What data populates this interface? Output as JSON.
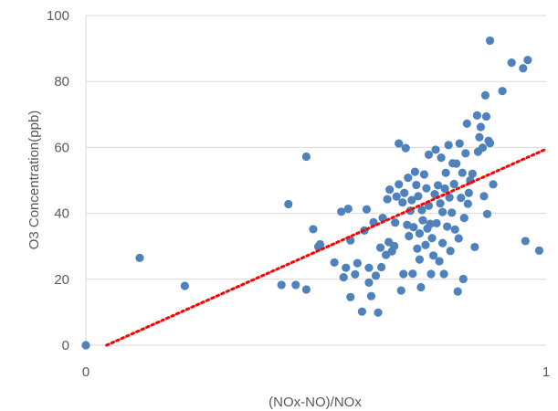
{
  "chart_data": {
    "type": "scatter",
    "xlabel": "(NOx-NO)/NOx",
    "ylabel": "O3 Concentration(ppb)",
    "xlim": [
      0,
      1
    ],
    "ylim": [
      0,
      100
    ],
    "x_ticks": [
      "0",
      "1"
    ],
    "y_ticks": [
      "0",
      "20",
      "40",
      "60",
      "80",
      "100"
    ],
    "grid": "horizontal",
    "legend": "none",
    "marker_color": "#4f81bd",
    "trendline": {
      "style": "dotted",
      "color": "#ff0000",
      "x_start": 0.045,
      "y_start": 0,
      "x_end": 1.0,
      "y_end": 59.5
    },
    "points": [
      [
        0.0,
        0.0
      ],
      [
        0.117,
        26.5
      ],
      [
        0.215,
        18.0
      ],
      [
        0.425,
        18.3
      ],
      [
        0.44,
        42.8
      ],
      [
        0.456,
        18.3
      ],
      [
        0.479,
        16.9
      ],
      [
        0.479,
        57.2
      ],
      [
        0.494,
        35.2
      ],
      [
        0.509,
        30.6
      ],
      [
        0.505,
        29.9
      ],
      [
        0.54,
        25.1
      ],
      [
        0.555,
        40.5
      ],
      [
        0.56,
        20.6
      ],
      [
        0.565,
        23.5
      ],
      [
        0.57,
        41.4
      ],
      [
        0.575,
        14.6
      ],
      [
        0.575,
        31.8
      ],
      [
        0.585,
        21.5
      ],
      [
        0.59,
        24.9
      ],
      [
        0.6,
        10.2
      ],
      [
        0.605,
        34.8
      ],
      [
        0.61,
        41.2
      ],
      [
        0.615,
        19.0
      ],
      [
        0.615,
        23.5
      ],
      [
        0.62,
        14.9
      ],
      [
        0.625,
        37.3
      ],
      [
        0.63,
        21.1
      ],
      [
        0.635,
        9.9
      ],
      [
        0.64,
        29.6
      ],
      [
        0.642,
        23.7
      ],
      [
        0.645,
        38.6
      ],
      [
        0.652,
        27.4
      ],
      [
        0.655,
        44.3
      ],
      [
        0.658,
        31.3
      ],
      [
        0.66,
        47.2
      ],
      [
        0.665,
        28.5
      ],
      [
        0.67,
        30.1
      ],
      [
        0.672,
        37.2
      ],
      [
        0.675,
        45.1
      ],
      [
        0.68,
        61.2
      ],
      [
        0.68,
        48.8
      ],
      [
        0.685,
        16.6
      ],
      [
        0.688,
        43.3
      ],
      [
        0.69,
        21.6
      ],
      [
        0.692,
        46.2
      ],
      [
        0.695,
        59.8
      ],
      [
        0.698,
        36.5
      ],
      [
        0.7,
        50.8
      ],
      [
        0.702,
        33.1
      ],
      [
        0.705,
        40.8
      ],
      [
        0.708,
        44.0
      ],
      [
        0.71,
        21.7
      ],
      [
        0.712,
        35.8
      ],
      [
        0.715,
        52.6
      ],
      [
        0.718,
        48.6
      ],
      [
        0.72,
        29.3
      ],
      [
        0.722,
        45.2
      ],
      [
        0.725,
        26.0
      ],
      [
        0.725,
        33.9
      ],
      [
        0.728,
        17.6
      ],
      [
        0.73,
        41.0
      ],
      [
        0.732,
        37.9
      ],
      [
        0.735,
        51.8
      ],
      [
        0.738,
        30.4
      ],
      [
        0.74,
        47.6
      ],
      [
        0.742,
        35.4
      ],
      [
        0.745,
        42.3
      ],
      [
        0.745,
        57.8
      ],
      [
        0.748,
        36.8
      ],
      [
        0.75,
        21.6
      ],
      [
        0.752,
        32.5
      ],
      [
        0.755,
        27.2
      ],
      [
        0.758,
        45.8
      ],
      [
        0.76,
        59.3
      ],
      [
        0.762,
        37.0
      ],
      [
        0.765,
        48.5
      ],
      [
        0.768,
        25.5
      ],
      [
        0.77,
        43.0
      ],
      [
        0.772,
        56.9
      ],
      [
        0.775,
        31.0
      ],
      [
        0.775,
        40.4
      ],
      [
        0.778,
        21.6
      ],
      [
        0.78,
        47.5
      ],
      [
        0.782,
        52.3
      ],
      [
        0.785,
        36.0
      ],
      [
        0.788,
        60.7
      ],
      [
        0.79,
        44.8
      ],
      [
        0.792,
        28.6
      ],
      [
        0.795,
        40.2
      ],
      [
        0.797,
        55.2
      ],
      [
        0.8,
        48.9
      ],
      [
        0.802,
        35.1
      ],
      [
        0.805,
        55.1
      ],
      [
        0.808,
        16.3
      ],
      [
        0.81,
        32.4
      ],
      [
        0.812,
        61.2
      ],
      [
        0.815,
        44.7
      ],
      [
        0.818,
        52.3
      ],
      [
        0.82,
        20.1
      ],
      [
        0.822,
        38.6
      ],
      [
        0.825,
        58.2
      ],
      [
        0.828,
        67.2
      ],
      [
        0.83,
        42.9
      ],
      [
        0.832,
        46.2
      ],
      [
        0.835,
        50.0
      ],
      [
        0.84,
        52.0
      ],
      [
        0.845,
        29.8
      ],
      [
        0.85,
        69.7
      ],
      [
        0.852,
        58.7
      ],
      [
        0.855,
        63.1
      ],
      [
        0.858,
        66.2
      ],
      [
        0.862,
        59.9
      ],
      [
        0.865,
        45.2
      ],
      [
        0.868,
        75.8
      ],
      [
        0.87,
        69.4
      ],
      [
        0.872,
        39.8
      ],
      [
        0.875,
        62.0
      ],
      [
        0.878,
        61.3
      ],
      [
        0.878,
        92.4
      ],
      [
        0.885,
        48.8
      ],
      [
        0.905,
        77.1
      ],
      [
        0.925,
        85.7
      ],
      [
        0.95,
        84.0
      ],
      [
        0.955,
        31.6
      ],
      [
        0.96,
        86.5
      ],
      [
        0.985,
        28.7
      ]
    ]
  }
}
